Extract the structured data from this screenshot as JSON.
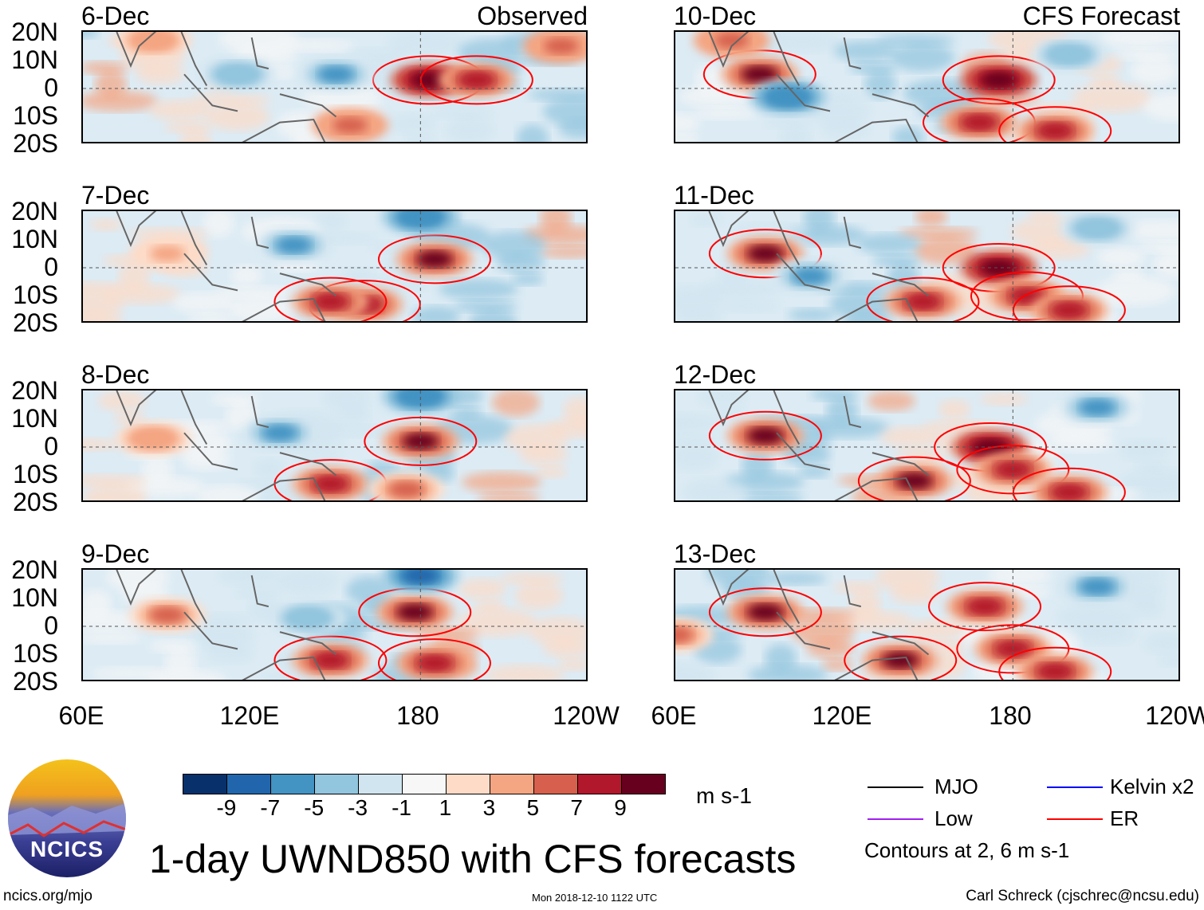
{
  "figure": {
    "title": "1-day UWND850 with CFS forecasts",
    "timestamp": "Mon 2018-12-10 1122 UTC",
    "url": "ncics.org/mjo",
    "author": "Carl Schreck (cjschrec@ncsu.edu)",
    "logo_text": "NCICS",
    "observed_label": "Observed",
    "forecast_label": "CFS Forecast"
  },
  "axes": {
    "lat_labels": [
      "20N",
      "10N",
      "0",
      "10S",
      "20S"
    ],
    "lon_labels": [
      "60E",
      "120E",
      "180",
      "120W"
    ],
    "lon_range_deg_east": [
      60,
      240
    ],
    "lat_range": [
      -20,
      20
    ]
  },
  "colorbar": {
    "units": "m s-1",
    "labels": [
      "-9",
      "-7",
      "-5",
      "-3",
      "-1",
      "1",
      "3",
      "5",
      "7",
      "9"
    ],
    "colors": [
      "#08306b",
      "#2166ac",
      "#4393c3",
      "#92c5de",
      "#d1e5f0",
      "#f7f7f7",
      "#fddbc7",
      "#f4a582",
      "#d6604d",
      "#b2182b",
      "#67001f"
    ]
  },
  "legend": {
    "items": [
      {
        "label": "MJO",
        "color": "#000000"
      },
      {
        "label": "Kelvin x2",
        "color": "#0000ff"
      },
      {
        "label": "Low",
        "color": "#a020f0"
      },
      {
        "label": "ER",
        "color": "#ff0000"
      }
    ],
    "note": "Contours at 2, 6 m s-1"
  },
  "panels": [
    {
      "date": "6-Dec",
      "group": "observed",
      "anomalies": [
        [
          183,
          3,
          10
        ],
        [
          200,
          3,
          8
        ],
        [
          155,
          -13,
          6
        ],
        [
          85,
          17,
          4
        ],
        [
          150,
          5,
          -6
        ],
        [
          115,
          5,
          -5
        ],
        [
          230,
          15,
          6
        ]
      ]
    },
    {
      "date": "7-Dec",
      "group": "observed",
      "anomalies": [
        [
          185,
          3,
          9
        ],
        [
          160,
          -13,
          8
        ],
        [
          148,
          -12,
          7
        ],
        [
          90,
          5,
          3
        ],
        [
          135,
          8,
          -6
        ],
        [
          180,
          18,
          -7
        ]
      ]
    },
    {
      "date": "8-Dec",
      "group": "observed",
      "anomalies": [
        [
          180,
          2,
          9
        ],
        [
          148,
          -13,
          7
        ],
        [
          175,
          -15,
          5
        ],
        [
          85,
          3,
          4
        ],
        [
          130,
          5,
          -6
        ],
        [
          180,
          18,
          -7
        ]
      ]
    },
    {
      "date": "9-Dec",
      "group": "observed",
      "anomalies": [
        [
          178,
          5,
          9
        ],
        [
          185,
          -13,
          8
        ],
        [
          148,
          -12,
          7
        ],
        [
          90,
          4,
          5
        ],
        [
          140,
          3,
          -5
        ],
        [
          180,
          18,
          -8
        ]
      ]
    },
    {
      "date": "10-Dec",
      "group": "forecast",
      "anomalies": [
        [
          90,
          5,
          9
        ],
        [
          175,
          3,
          10
        ],
        [
          168,
          -12,
          7
        ],
        [
          195,
          -15,
          8
        ],
        [
          80,
          17,
          6
        ],
        [
          100,
          -3,
          -7
        ],
        [
          200,
          12,
          -5
        ]
      ]
    },
    {
      "date": "11-Dec",
      "group": "forecast",
      "anomalies": [
        [
          92,
          5,
          9
        ],
        [
          175,
          0,
          10
        ],
        [
          185,
          -10,
          8
        ],
        [
          148,
          -12,
          8
        ],
        [
          200,
          -15,
          7
        ],
        [
          108,
          -3,
          -6
        ],
        [
          210,
          14,
          -5
        ]
      ]
    },
    {
      "date": "12-Dec",
      "group": "forecast",
      "anomalies": [
        [
          92,
          4,
          9
        ],
        [
          172,
          0,
          10
        ],
        [
          180,
          -8,
          8
        ],
        [
          145,
          -12,
          9
        ],
        [
          200,
          -16,
          8
        ],
        [
          210,
          14,
          -6
        ]
      ]
    },
    {
      "date": "13-Dec",
      "group": "forecast",
      "anomalies": [
        [
          92,
          5,
          9
        ],
        [
          170,
          7,
          8
        ],
        [
          180,
          -8,
          8
        ],
        [
          140,
          -12,
          9
        ],
        [
          195,
          -16,
          7
        ],
        [
          210,
          14,
          -6
        ],
        [
          60,
          -3,
          5
        ]
      ]
    }
  ]
}
